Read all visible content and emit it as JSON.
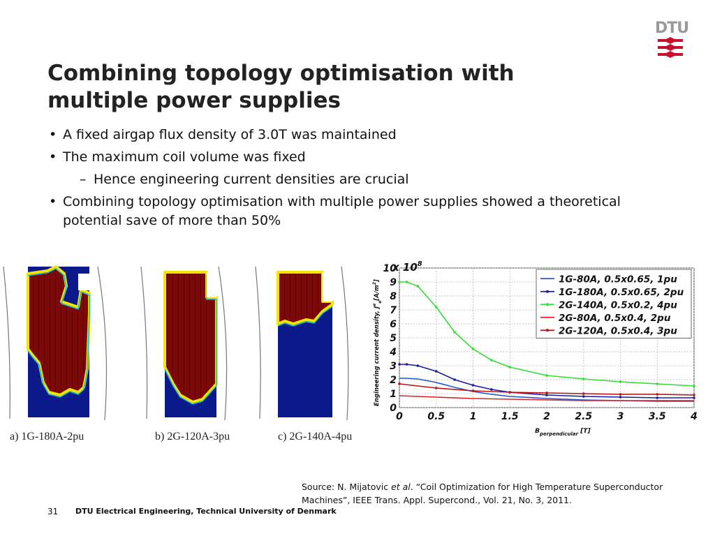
{
  "header": {
    "logo_text": "DTU",
    "title": "Combining topology optimisation with multiple power supplies"
  },
  "bullets": [
    {
      "text": "A fixed airgap flux density of 3.0T was maintained"
    },
    {
      "text": "The maximum coil volume was fixed"
    },
    {
      "text": "Hence engineering current densities are crucial"
    },
    {
      "text": "Combining topology optimisation with multiple power supplies showed a theoretical potential save of more than 50%"
    }
  ],
  "panels": {
    "labels": [
      "a) 1G-180A-2pu",
      "b) 2G-120A-3pu",
      "c) 2G-140A-4pu"
    ],
    "colors": {
      "fill": "#7a0a0a",
      "empty": "#0a1a8a",
      "edge": "#f2e600"
    }
  },
  "chart_data": {
    "type": "line",
    "multiplier": "x 10",
    "multiplier_exp": "8",
    "ylabel": "Engineering current density, J",
    "ylabel_sub": "e",
    "ylabel_sup": "e",
    "ylabel_unit": "[A/m",
    "ylabel_unit_sup": "2",
    "ylabel_unit_end": "]",
    "xlabel": "B",
    "xlabel_sub": "perpendicular",
    "xlabel_unit": " [T]",
    "xlim": [
      0,
      4
    ],
    "ylim": [
      0,
      10
    ],
    "xticks": [
      "0",
      "0.5",
      "1",
      "1.5",
      "2",
      "2.5",
      "3",
      "3.5",
      "4"
    ],
    "yticks": [
      "0",
      "1",
      "2",
      "3",
      "4",
      "5",
      "6",
      "7",
      "8",
      "9",
      "10"
    ],
    "grid": true,
    "legend_position": "top-right",
    "series": [
      {
        "name": "1G-80A,   0.5x0.65, 1pu",
        "color": "#2255cc",
        "markers": false,
        "x": [
          0,
          0.1,
          0.25,
          0.5,
          0.75,
          1,
          1.25,
          1.5,
          2,
          2.5,
          3,
          3.5,
          4
        ],
        "y": [
          2.1,
          2.1,
          2.05,
          1.8,
          1.45,
          1.15,
          0.95,
          0.8,
          0.65,
          0.55,
          0.5,
          0.45,
          0.45
        ]
      },
      {
        "name": "1G-180A, 0.5x0.65, 2pu",
        "color": "#1a1aa0",
        "markers": true,
        "x": [
          0,
          0.1,
          0.25,
          0.5,
          0.75,
          1,
          1.25,
          1.5,
          2,
          2.5,
          3,
          3.5,
          4
        ],
        "y": [
          3.1,
          3.1,
          3.0,
          2.6,
          2.0,
          1.6,
          1.3,
          1.1,
          0.9,
          0.8,
          0.75,
          0.7,
          0.7
        ]
      },
      {
        "name": "2G-140A, 0.5x0.2,   4pu",
        "color": "#33dd33",
        "markers": true,
        "x": [
          0,
          0.1,
          0.25,
          0.5,
          0.75,
          1,
          1.25,
          1.5,
          2,
          2.5,
          3,
          3.5,
          4
        ],
        "y": [
          9.0,
          9.0,
          8.7,
          7.2,
          5.4,
          4.2,
          3.4,
          2.9,
          2.3,
          2.05,
          1.85,
          1.7,
          1.55
        ]
      },
      {
        "name": "2G-80A,   0.5x0.4,   2pu",
        "color": "#dd2222",
        "markers": false,
        "x": [
          0,
          0.5,
          1,
          1.5,
          2,
          2.5,
          3,
          3.5,
          4
        ],
        "y": [
          0.85,
          0.75,
          0.65,
          0.6,
          0.55,
          0.5,
          0.5,
          0.5,
          0.5
        ]
      },
      {
        "name": "2G-120A, 0.5x0.4,   3pu",
        "color": "#bb1111",
        "markers": true,
        "x": [
          0,
          0.5,
          1,
          1.5,
          2,
          2.5,
          3,
          3.5,
          4
        ],
        "y": [
          1.7,
          1.4,
          1.2,
          1.1,
          1.05,
          1.0,
          0.95,
          0.95,
          0.9
        ]
      }
    ]
  },
  "source": {
    "prefix": "Source: N. Mijatovic ",
    "etal": "et al",
    "rest": ". “Coil Optimization for High Temperature Superconductor Machines”, IEEE Trans. Appl. Supercond., Vol. 21, No. 3, 2011."
  },
  "footer": {
    "page_number": "31",
    "text": "DTU Electrical Engineering, Technical University of Denmark"
  }
}
